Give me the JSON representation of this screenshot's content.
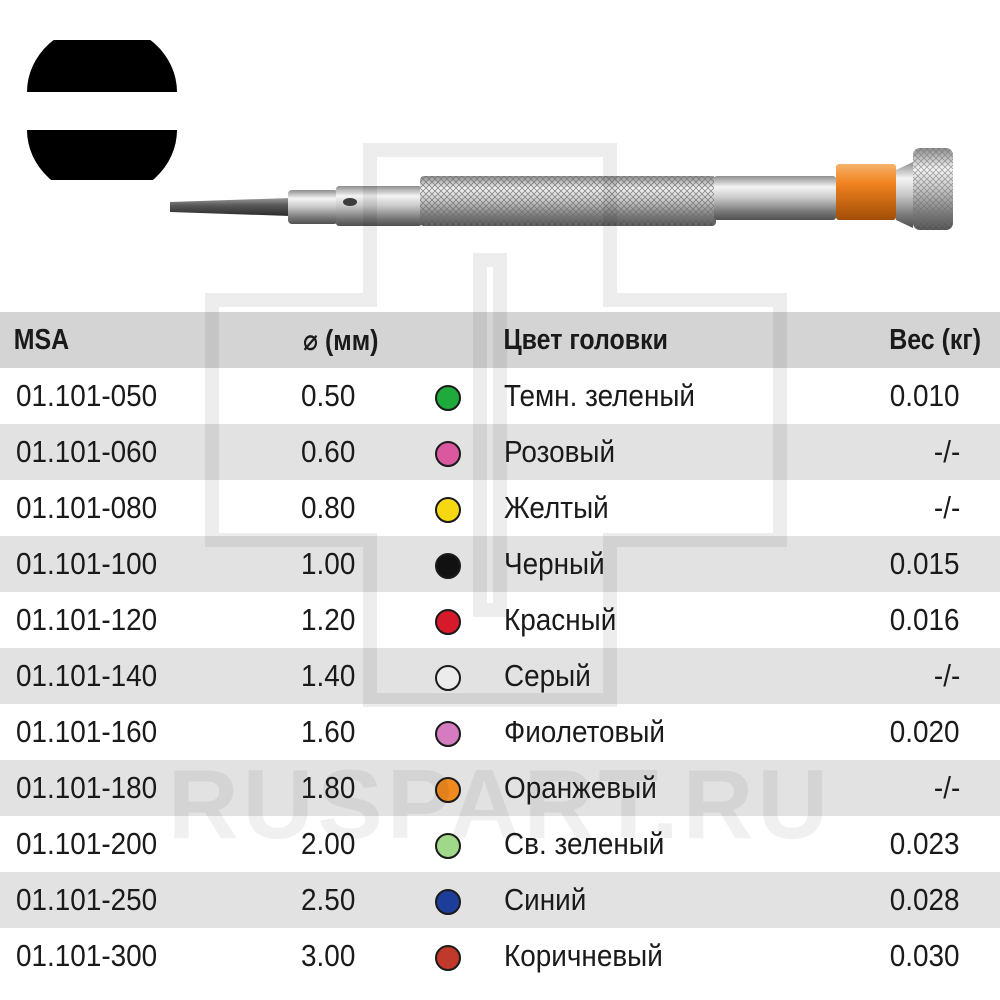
{
  "table": {
    "headers": {
      "msa": "MSA",
      "diameter": "⌀ (мм)",
      "color": "Цвет головки",
      "weight": "Вес (кг)"
    },
    "rows": [
      {
        "msa": "01.101-050",
        "diameter": "0.50",
        "color_name": "Темн. зеленый",
        "color_hex": "#1faa3c",
        "weight": "0.010"
      },
      {
        "msa": "01.101-060",
        "diameter": "0.60",
        "color_name": "Розовый",
        "color_hex": "#d9589f",
        "weight": "-/-"
      },
      {
        "msa": "01.101-080",
        "diameter": "0.80",
        "color_name": "Желтый",
        "color_hex": "#f6d812",
        "weight": "-/-"
      },
      {
        "msa": "01.101-100",
        "diameter": "1.00",
        "color_name": "Черный",
        "color_hex": "#111111",
        "weight": "0.015"
      },
      {
        "msa": "01.101-120",
        "diameter": "1.20",
        "color_name": "Красный",
        "color_hex": "#d6192b",
        "weight": "0.016"
      },
      {
        "msa": "01.101-140",
        "diameter": "1.40",
        "color_name": "Серый",
        "color_hex": "#ececec",
        "weight": "-/-"
      },
      {
        "msa": "01.101-160",
        "diameter": "1.60",
        "color_name": "Фиолетовый",
        "color_hex": "#d57bc0",
        "weight": "0.020"
      },
      {
        "msa": "01.101-180",
        "diameter": "1.80",
        "color_name": "Оранжевый",
        "color_hex": "#f08a1e",
        "weight": "-/-"
      },
      {
        "msa": "01.101-200",
        "diameter": "2.00",
        "color_name": "Св. зеленый",
        "color_hex": "#9fd889",
        "weight": "0.023"
      },
      {
        "msa": "01.101-250",
        "diameter": "2.50",
        "color_name": "Синий",
        "color_hex": "#1d3d9a",
        "weight": "0.028"
      },
      {
        "msa": "01.101-300",
        "diameter": "3.00",
        "color_name": "Коричневый",
        "color_hex": "#c0392b",
        "weight": "0.030"
      }
    ]
  },
  "watermark": {
    "text": "RUSPART.RU"
  },
  "images": {
    "tip_symbol": "slotted-tip-icon",
    "product": "precision-screwdriver-image",
    "ferrule_color": "#f0821e"
  }
}
